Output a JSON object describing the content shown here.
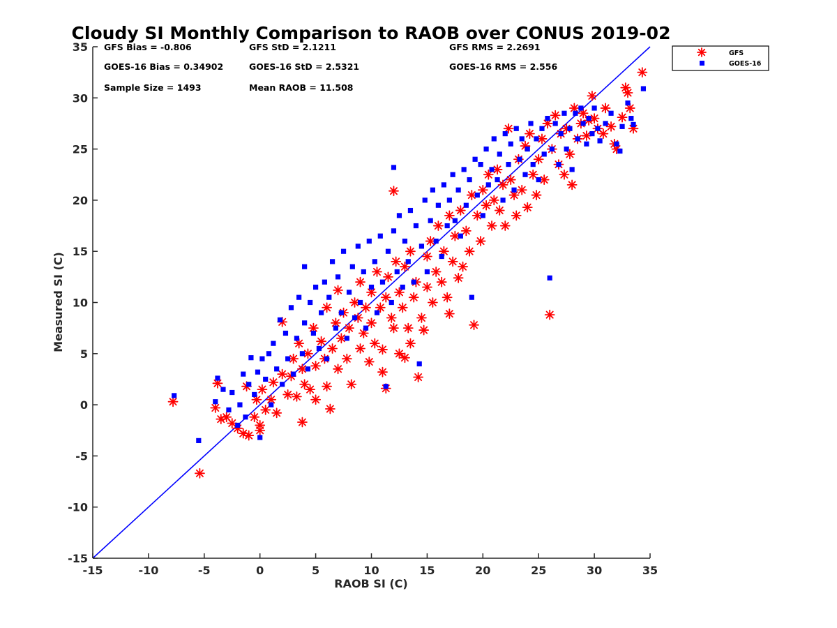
{
  "chart_data": {
    "type": "scatter",
    "title": "Cloudy SI Monthly Comparison to RAOB over CONUS 2019-02",
    "xlabel": "RAOB SI (C)",
    "ylabel": "Measured SI (C)",
    "xlim": [
      -15,
      35
    ],
    "ylim": [
      -15,
      35
    ],
    "xticks": [
      "-15",
      "-10",
      "-5",
      "0",
      "5",
      "10",
      "15",
      "20",
      "25",
      "30",
      "35"
    ],
    "yticks": [
      "-15",
      "-10",
      "-5",
      "0",
      "5",
      "10",
      "15",
      "20",
      "25",
      "30",
      "35"
    ],
    "grid": false,
    "legend_position": "outside-top-right",
    "reference_line": {
      "from": [
        -15,
        -15
      ],
      "to": [
        35,
        35
      ],
      "color": "#0000ff"
    },
    "stats": [
      [
        "GFS Bias = -0.806",
        "GFS StD = 2.1211",
        "GFS RMS = 2.2691"
      ],
      [
        "GOES-16 Bias = 0.34902",
        "GOES-16 StD = 2.5321",
        "GOES-16 RMS = 2.556"
      ],
      [
        "Sample Size = 1493",
        "Mean RAOB = 11.508",
        ""
      ]
    ],
    "series": [
      {
        "name": "GFS",
        "marker": "asterisk",
        "color": "#ff0000",
        "points": [
          [
            -7.8,
            0.3
          ],
          [
            -5.4,
            -6.7
          ],
          [
            -4.0,
            -0.3
          ],
          [
            -3.8,
            2.1
          ],
          [
            -3.5,
            -1.4
          ],
          [
            -3.0,
            -1.2
          ],
          [
            -2.5,
            -1.8
          ],
          [
            -2.0,
            -2.3
          ],
          [
            -1.5,
            -2.8
          ],
          [
            -1.2,
            1.8
          ],
          [
            -1.0,
            -3.0
          ],
          [
            -0.5,
            -1.2
          ],
          [
            -0.3,
            0.5
          ],
          [
            0.0,
            -2.5
          ],
          [
            0.0,
            -2.0
          ],
          [
            0.2,
            1.5
          ],
          [
            0.5,
            -0.5
          ],
          [
            1.0,
            0.5
          ],
          [
            1.2,
            2.2
          ],
          [
            1.5,
            -0.8
          ],
          [
            2.0,
            3.0
          ],
          [
            2.0,
            8.1
          ],
          [
            2.5,
            1.0
          ],
          [
            2.8,
            2.8
          ],
          [
            3.0,
            4.5
          ],
          [
            3.3,
            0.8
          ],
          [
            3.5,
            6.0
          ],
          [
            3.8,
            3.5
          ],
          [
            3.8,
            -1.7
          ],
          [
            4.0,
            2.0
          ],
          [
            4.3,
            5.0
          ],
          [
            4.5,
            1.5
          ],
          [
            4.8,
            7.5
          ],
          [
            5.0,
            3.8
          ],
          [
            5.0,
            0.5
          ],
          [
            5.5,
            6.2
          ],
          [
            5.8,
            4.5
          ],
          [
            6.0,
            9.5
          ],
          [
            6.0,
            1.8
          ],
          [
            6.3,
            -0.4
          ],
          [
            6.5,
            5.5
          ],
          [
            6.8,
            8.0
          ],
          [
            7.0,
            3.5
          ],
          [
            7.0,
            11.2
          ],
          [
            7.3,
            6.5
          ],
          [
            7.5,
            9.0
          ],
          [
            7.8,
            4.5
          ],
          [
            8.0,
            7.5
          ],
          [
            8.2,
            2.0
          ],
          [
            8.5,
            10.0
          ],
          [
            8.8,
            8.5
          ],
          [
            9.0,
            5.5
          ],
          [
            9.0,
            12.0
          ],
          [
            9.3,
            7.0
          ],
          [
            9.5,
            9.5
          ],
          [
            9.8,
            4.2
          ],
          [
            10.0,
            11.0
          ],
          [
            10.0,
            8.0
          ],
          [
            10.3,
            6.0
          ],
          [
            10.5,
            13.0
          ],
          [
            10.8,
            9.5
          ],
          [
            11.0,
            5.4
          ],
          [
            11.0,
            3.2
          ],
          [
            11.3,
            10.5
          ],
          [
            11.3,
            1.6
          ],
          [
            11.5,
            12.5
          ],
          [
            11.8,
            8.5
          ],
          [
            12.0,
            20.9
          ],
          [
            12.0,
            7.5
          ],
          [
            12.2,
            14.0
          ],
          [
            12.5,
            11.0
          ],
          [
            12.5,
            5.0
          ],
          [
            12.8,
            9.5
          ],
          [
            13.0,
            13.5
          ],
          [
            13.0,
            4.6
          ],
          [
            13.3,
            7.5
          ],
          [
            13.5,
            15.0
          ],
          [
            13.5,
            6.0
          ],
          [
            13.8,
            10.5
          ],
          [
            14.0,
            12.0
          ],
          [
            14.2,
            2.7
          ],
          [
            14.5,
            8.5
          ],
          [
            14.7,
            7.3
          ],
          [
            15.0,
            14.5
          ],
          [
            15.0,
            11.5
          ],
          [
            15.3,
            16.0
          ],
          [
            15.5,
            10.0
          ],
          [
            15.8,
            13.0
          ],
          [
            16.0,
            17.5
          ],
          [
            16.3,
            12.0
          ],
          [
            16.5,
            15.0
          ],
          [
            16.8,
            10.5
          ],
          [
            17.0,
            8.9
          ],
          [
            17.0,
            18.5
          ],
          [
            17.3,
            14.0
          ],
          [
            17.5,
            16.5
          ],
          [
            17.8,
            12.4
          ],
          [
            18.0,
            19.0
          ],
          [
            18.2,
            13.5
          ],
          [
            18.5,
            17.0
          ],
          [
            18.8,
            15.0
          ],
          [
            19.0,
            20.5
          ],
          [
            19.2,
            7.8
          ],
          [
            19.5,
            18.5
          ],
          [
            19.8,
            16.0
          ],
          [
            20.0,
            21.0
          ],
          [
            20.3,
            19.5
          ],
          [
            20.5,
            22.5
          ],
          [
            20.8,
            17.5
          ],
          [
            21.0,
            20.0
          ],
          [
            21.3,
            23.0
          ],
          [
            21.5,
            19.0
          ],
          [
            21.8,
            21.5
          ],
          [
            22.0,
            17.5
          ],
          [
            22.3,
            27.0
          ],
          [
            22.5,
            22.0
          ],
          [
            22.8,
            20.5
          ],
          [
            23.0,
            18.5
          ],
          [
            23.2,
            24.0
          ],
          [
            23.5,
            21.0
          ],
          [
            23.8,
            25.3
          ],
          [
            24.0,
            19.3
          ],
          [
            24.2,
            26.5
          ],
          [
            24.5,
            22.5
          ],
          [
            24.8,
            20.5
          ],
          [
            25.0,
            24.0
          ],
          [
            25.3,
            26.0
          ],
          [
            25.5,
            22.0
          ],
          [
            25.8,
            27.5
          ],
          [
            26.0,
            8.8
          ],
          [
            26.2,
            25.0
          ],
          [
            26.5,
            28.3
          ],
          [
            26.8,
            23.5
          ],
          [
            27.0,
            26.5
          ],
          [
            27.3,
            22.5
          ],
          [
            27.5,
            27.0
          ],
          [
            27.8,
            24.5
          ],
          [
            28.0,
            21.5
          ],
          [
            28.2,
            29.0
          ],
          [
            28.5,
            26.0
          ],
          [
            28.8,
            27.5
          ],
          [
            29.0,
            28.5
          ],
          [
            29.3,
            26.3
          ],
          [
            29.5,
            27.8
          ],
          [
            29.8,
            30.2
          ],
          [
            30.0,
            28.0
          ],
          [
            30.3,
            27.0
          ],
          [
            30.8,
            26.5
          ],
          [
            31.0,
            29.0
          ],
          [
            31.5,
            27.2
          ],
          [
            31.8,
            25.5
          ],
          [
            32.0,
            25.0
          ],
          [
            32.5,
            28.1
          ],
          [
            32.8,
            31.0
          ],
          [
            33.0,
            30.5
          ],
          [
            33.2,
            29.0
          ],
          [
            33.5,
            27.0
          ],
          [
            34.3,
            32.5
          ]
        ]
      },
      {
        "name": "GOES-16",
        "marker": "square",
        "color": "#0000ff",
        "points": [
          [
            -7.7,
            0.9
          ],
          [
            -5.5,
            -3.5
          ],
          [
            -4.0,
            0.3
          ],
          [
            -3.8,
            2.6
          ],
          [
            -3.3,
            1.5
          ],
          [
            -2.8,
            -0.5
          ],
          [
            -2.5,
            1.2
          ],
          [
            -2.0,
            -2.0
          ],
          [
            -1.8,
            0.0
          ],
          [
            -1.5,
            3.0
          ],
          [
            -1.3,
            -1.2
          ],
          [
            -1.0,
            2.0
          ],
          [
            -0.8,
            4.6
          ],
          [
            -0.5,
            1.0
          ],
          [
            -0.2,
            3.2
          ],
          [
            0.0,
            -3.2
          ],
          [
            0.2,
            4.5
          ],
          [
            0.5,
            2.5
          ],
          [
            0.8,
            5.0
          ],
          [
            1.0,
            0.0
          ],
          [
            1.2,
            6.0
          ],
          [
            1.5,
            3.5
          ],
          [
            1.8,
            8.3
          ],
          [
            2.0,
            2.0
          ],
          [
            2.3,
            7.0
          ],
          [
            2.5,
            4.5
          ],
          [
            2.8,
            9.5
          ],
          [
            3.0,
            3.0
          ],
          [
            3.3,
            6.5
          ],
          [
            3.5,
            10.5
          ],
          [
            3.8,
            5.0
          ],
          [
            4.0,
            8.0
          ],
          [
            4.0,
            13.5
          ],
          [
            4.3,
            3.5
          ],
          [
            4.5,
            10.0
          ],
          [
            4.8,
            7.0
          ],
          [
            5.0,
            11.5
          ],
          [
            5.3,
            5.5
          ],
          [
            5.5,
            9.0
          ],
          [
            5.8,
            12.0
          ],
          [
            6.0,
            4.5
          ],
          [
            6.2,
            10.5
          ],
          [
            6.5,
            14.0
          ],
          [
            6.8,
            7.5
          ],
          [
            7.0,
            12.5
          ],
          [
            7.3,
            9.0
          ],
          [
            7.5,
            15.0
          ],
          [
            7.8,
            6.5
          ],
          [
            8.0,
            11.0
          ],
          [
            8.3,
            13.5
          ],
          [
            8.5,
            8.5
          ],
          [
            8.8,
            15.5
          ],
          [
            9.0,
            10.0
          ],
          [
            9.3,
            13.0
          ],
          [
            9.5,
            7.5
          ],
          [
            9.8,
            16.0
          ],
          [
            10.0,
            11.5
          ],
          [
            10.3,
            14.0
          ],
          [
            10.5,
            9.0
          ],
          [
            10.8,
            16.5
          ],
          [
            11.0,
            12.0
          ],
          [
            11.3,
            1.8
          ],
          [
            11.5,
            15.0
          ],
          [
            11.8,
            10.0
          ],
          [
            12.0,
            23.2
          ],
          [
            12.0,
            17.0
          ],
          [
            12.3,
            13.0
          ],
          [
            12.5,
            18.5
          ],
          [
            12.8,
            11.5
          ],
          [
            13.0,
            16.0
          ],
          [
            13.3,
            14.0
          ],
          [
            13.5,
            19.0
          ],
          [
            13.8,
            12.0
          ],
          [
            14.0,
            17.5
          ],
          [
            14.3,
            4.0
          ],
          [
            14.5,
            15.5
          ],
          [
            14.8,
            20.0
          ],
          [
            15.0,
            13.0
          ],
          [
            15.3,
            18.0
          ],
          [
            15.5,
            21.0
          ],
          [
            15.8,
            16.0
          ],
          [
            16.0,
            19.5
          ],
          [
            16.3,
            14.5
          ],
          [
            16.5,
            21.5
          ],
          [
            16.8,
            17.5
          ],
          [
            17.0,
            20.0
          ],
          [
            17.3,
            22.5
          ],
          [
            17.5,
            18.0
          ],
          [
            17.8,
            21.0
          ],
          [
            18.0,
            16.5
          ],
          [
            18.3,
            23.0
          ],
          [
            18.5,
            19.5
          ],
          [
            18.8,
            22.0
          ],
          [
            19.0,
            10.5
          ],
          [
            19.3,
            24.0
          ],
          [
            19.5,
            20.5
          ],
          [
            19.8,
            23.5
          ],
          [
            20.0,
            18.5
          ],
          [
            20.3,
            25.0
          ],
          [
            20.5,
            21.5
          ],
          [
            20.8,
            23.0
          ],
          [
            21.0,
            26.0
          ],
          [
            21.3,
            22.0
          ],
          [
            21.5,
            24.5
          ],
          [
            21.8,
            20.0
          ],
          [
            22.0,
            26.5
          ],
          [
            22.3,
            23.5
          ],
          [
            22.5,
            25.5
          ],
          [
            22.8,
            21.0
          ],
          [
            23.0,
            27.0
          ],
          [
            23.3,
            24.0
          ],
          [
            23.5,
            26.0
          ],
          [
            23.8,
            22.5
          ],
          [
            24.0,
            25.0
          ],
          [
            24.3,
            27.5
          ],
          [
            24.5,
            23.5
          ],
          [
            24.8,
            26.0
          ],
          [
            25.0,
            22.0
          ],
          [
            25.3,
            27.0
          ],
          [
            25.5,
            24.5
          ],
          [
            25.8,
            28.0
          ],
          [
            26.0,
            12.4
          ],
          [
            26.2,
            25.0
          ],
          [
            26.5,
            27.5
          ],
          [
            26.8,
            23.5
          ],
          [
            27.0,
            26.5
          ],
          [
            27.3,
            28.5
          ],
          [
            27.5,
            25.0
          ],
          [
            27.8,
            27.0
          ],
          [
            28.0,
            23.0
          ],
          [
            28.3,
            28.5
          ],
          [
            28.5,
            26.0
          ],
          [
            28.8,
            29.0
          ],
          [
            29.0,
            27.5
          ],
          [
            29.3,
            25.5
          ],
          [
            29.5,
            28.0
          ],
          [
            29.8,
            26.5
          ],
          [
            30.0,
            29.0
          ],
          [
            30.3,
            27.0
          ],
          [
            30.5,
            25.8
          ],
          [
            31.0,
            27.5
          ],
          [
            31.5,
            28.5
          ],
          [
            32.0,
            25.5
          ],
          [
            32.3,
            24.8
          ],
          [
            32.5,
            27.2
          ],
          [
            33.0,
            29.5
          ],
          [
            33.3,
            28.0
          ],
          [
            33.5,
            27.4
          ],
          [
            34.4,
            30.9
          ]
        ]
      }
    ]
  }
}
